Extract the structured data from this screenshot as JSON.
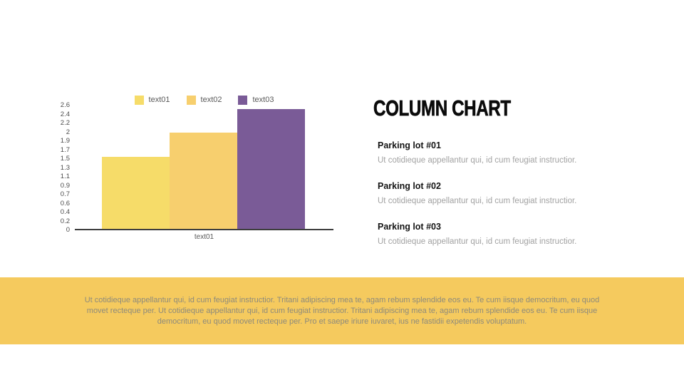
{
  "slide": {
    "title": "COLUMN CHART"
  },
  "chart_data": {
    "type": "bar",
    "title": "",
    "categories": [
      "text01"
    ],
    "series": [
      {
        "name": "text01",
        "values": [
          1.5
        ],
        "color": "#F6DC69"
      },
      {
        "name": "text02",
        "values": [
          2.0
        ],
        "color": "#F7CF6E"
      },
      {
        "name": "text03",
        "values": [
          2.5
        ],
        "color": "#7A5B97"
      }
    ],
    "xlabel": "text01",
    "ylabel": "",
    "ylim": [
      0,
      2.6
    ],
    "y_tick_labels": [
      "2.6",
      "2.4",
      "2.2",
      "2",
      "1.9",
      "1.7",
      "1.5",
      "1.3",
      "1.1",
      "0.9",
      "0.7",
      "0.6",
      "0.4",
      "0.2",
      "0"
    ],
    "legend_position": "top",
    "grid": false,
    "axis_color": "#3d3d3d"
  },
  "sections": [
    {
      "heading": "Parking lot #01",
      "body": "Ut cotidieque appellantur qui, id cum feugiat instructior."
    },
    {
      "heading": "Parking lot #02",
      "body": "Ut cotidieque appellantur qui, id cum feugiat instructior."
    },
    {
      "heading": "Parking lot #03",
      "body": "Ut cotidieque appellantur qui, id cum feugiat instructior."
    }
  ],
  "banner": {
    "text": "Ut cotidieque appellantur qui, id cum feugiat instructior. Tritani adipiscing mea te, agam rebum splendide eos eu. Te cum iisque democritum, eu quod movet recteque per. Ut cotidieque appellantur qui, id cum feugiat instructior. Tritani adipiscing mea te, agam rebum splendide eos eu. Te cum iisque democritum, eu quod movet recteque per. Pro et saepe iriure iuvaret, ius ne fastidii expetendis voluptatum.",
    "background": "#F5CA5E",
    "text_color": "#8D8A7C"
  }
}
